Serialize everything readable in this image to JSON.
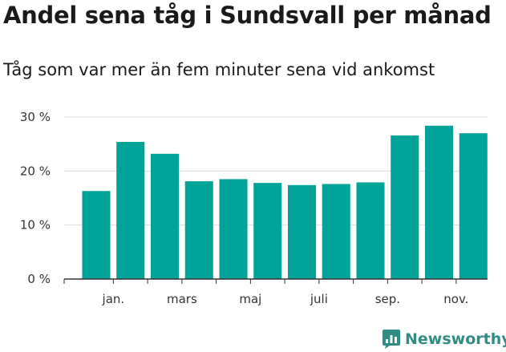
{
  "title": "Andel sena tåg i Sundsvall per månad",
  "subtitle": "Tåg som var mer än fem minuter sena vid ankomst",
  "brand": {
    "name": "Newsworthy",
    "color": "#2f8d86",
    "icon": "newsworthy-logo-icon"
  },
  "colors": {
    "bar": "#00a397",
    "grid": "#dddddd",
    "axis": "#333333"
  },
  "chart_data": {
    "type": "bar",
    "title": "Andel sena tåg i Sundsvall per månad",
    "subtitle": "Tåg som var mer än fem minuter sena vid ankomst",
    "xlabel": "",
    "ylabel": "",
    "x_tick_labels": [
      "jan.",
      "mars",
      "maj",
      "juli",
      "sep.",
      "nov."
    ],
    "y_ticks": [
      "0 %",
      "10 %",
      "20 %",
      "30 %"
    ],
    "y_tick_values": [
      0,
      10,
      20,
      30
    ],
    "ylim": [
      0,
      30
    ],
    "grid": true,
    "values": [
      16.3,
      25.4,
      23.2,
      18.1,
      18.5,
      17.8,
      17.4,
      17.6,
      17.9,
      26.6,
      28.4,
      27.0
    ],
    "bar_color": "#00a397"
  }
}
